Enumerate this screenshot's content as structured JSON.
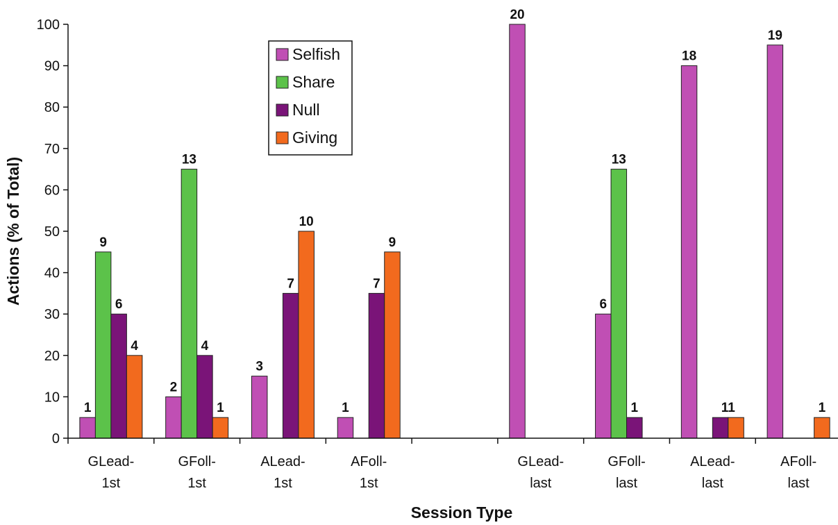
{
  "chart_data": {
    "type": "bar",
    "xlabel": "Session Type",
    "ylabel": "Actions (% of Total)",
    "ylim": [
      0,
      100
    ],
    "yticks": [
      0,
      10,
      20,
      30,
      40,
      50,
      60,
      70,
      80,
      90,
      100
    ],
    "categories": [
      [
        "GLead-",
        "1st"
      ],
      [
        "GFoll-",
        "1st"
      ],
      [
        "ALead-",
        "1st"
      ],
      [
        "AFoll-",
        "1st"
      ],
      [
        "",
        ""
      ],
      [
        "GLead-",
        "last"
      ],
      [
        "GFoll-",
        "last"
      ],
      [
        "ALead-",
        "last"
      ],
      [
        "AFoll-",
        "last"
      ]
    ],
    "series": [
      {
        "name": "Selfish",
        "color": "#c04fb4",
        "values": [
          5,
          10,
          15,
          5,
          null,
          100,
          30,
          90,
          95
        ],
        "labels": [
          "1",
          "2",
          "3",
          "1",
          "",
          "20",
          "6",
          "18",
          "19"
        ]
      },
      {
        "name": "Share",
        "color": "#5cc24a",
        "values": [
          45,
          65,
          null,
          null,
          null,
          null,
          65,
          null,
          null
        ],
        "labels": [
          "9",
          "13",
          "",
          "",
          "",
          "",
          "13",
          "",
          ""
        ]
      },
      {
        "name": "Null",
        "color": "#7a1478",
        "values": [
          30,
          20,
          35,
          35,
          null,
          null,
          5,
          5,
          null
        ],
        "labels": [
          "6",
          "4",
          "7",
          "7",
          "",
          "",
          "1",
          "",
          ""
        ]
      },
      {
        "name": "Giving",
        "color": "#f26a1e",
        "values": [
          20,
          5,
          50,
          45,
          null,
          null,
          null,
          5,
          5
        ],
        "labels": [
          "4",
          "1",
          "10",
          "9",
          "",
          "",
          "",
          "",
          "1"
        ]
      }
    ],
    "group_labels": [
      {
        "category": 7,
        "text": "11"
      }
    ],
    "legend": {
      "position": "top-center",
      "entries": [
        "Selfish",
        "Share",
        "Null",
        "Giving"
      ]
    },
    "grid": false
  }
}
